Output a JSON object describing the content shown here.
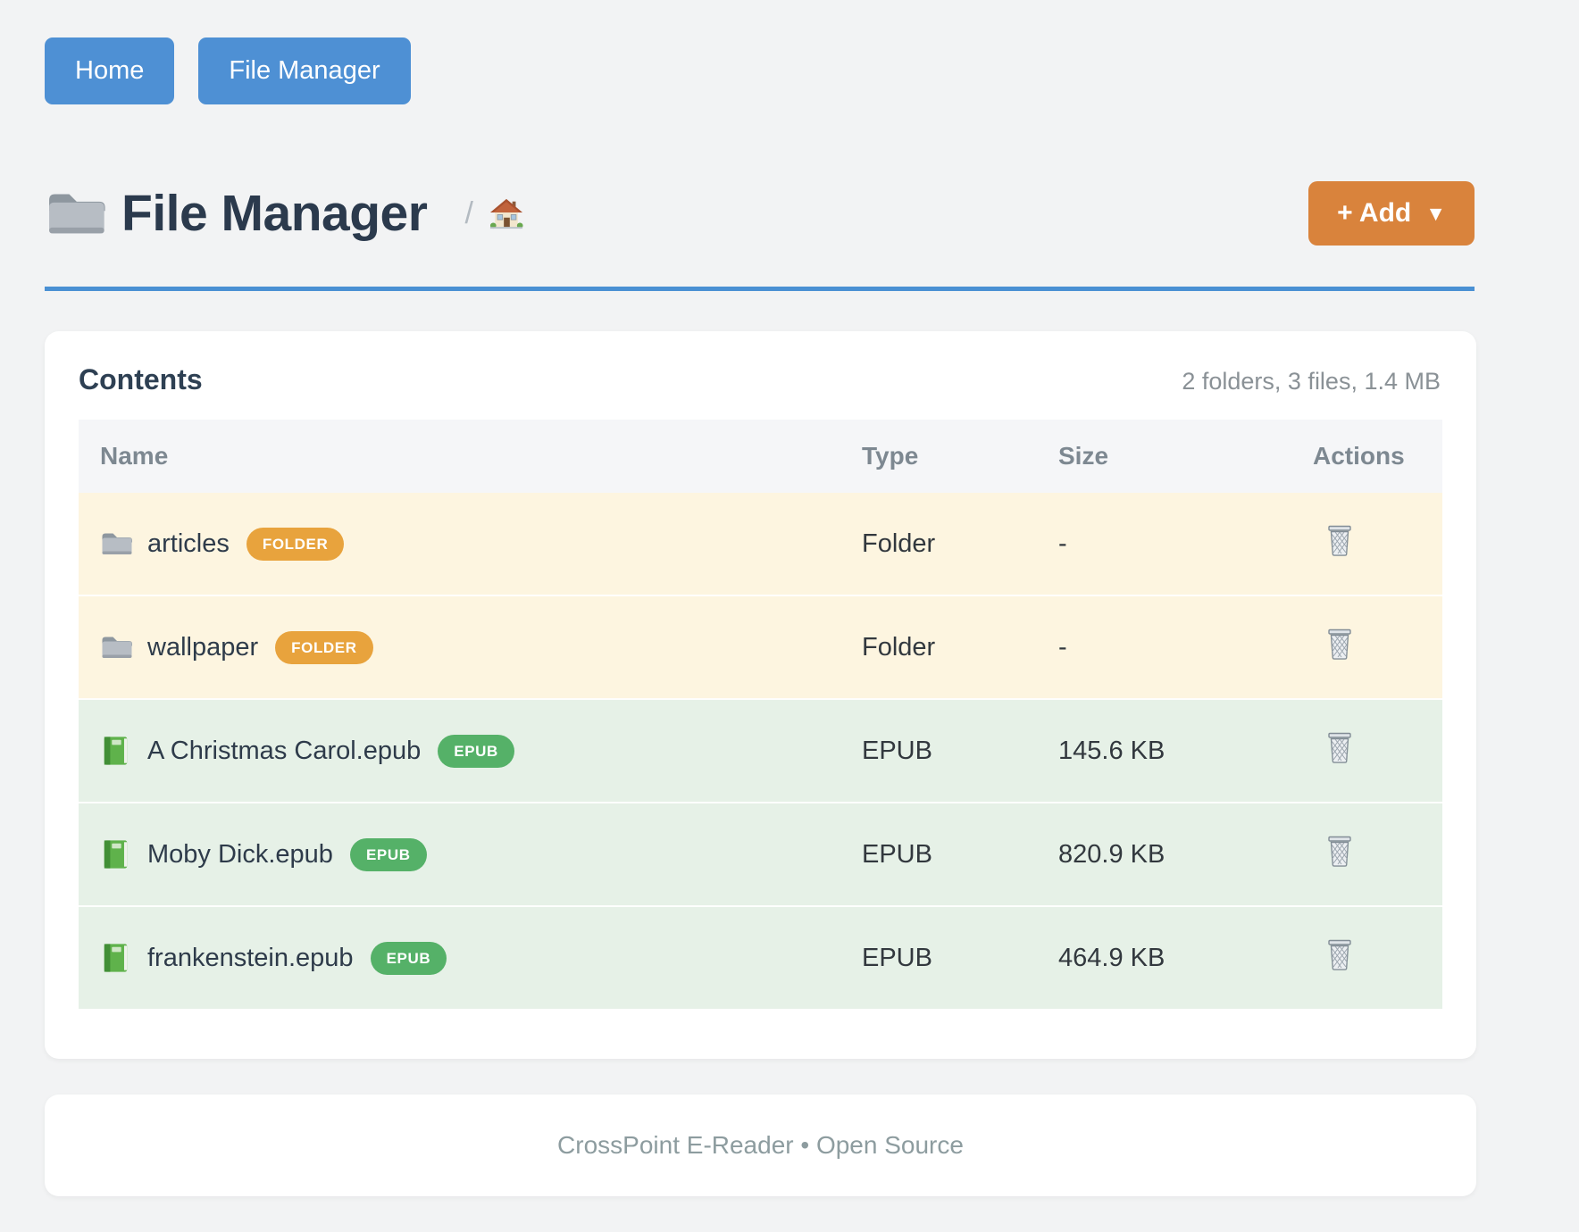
{
  "nav": {
    "home_label": "Home",
    "file_manager_label": "File Manager"
  },
  "header": {
    "title": "File Manager",
    "title_icon": "folder-icon",
    "breadcrumb_separator": "/",
    "breadcrumb_home_icon": "house-icon",
    "add_button_label": "+ Add",
    "add_button_caret": "▼"
  },
  "contents": {
    "heading": "Contents",
    "summary": "2 folders, 3 files, 1.4 MB",
    "table": {
      "columns": [
        "Name",
        "Type",
        "Size",
        "Actions"
      ],
      "rows": [
        {
          "name": "articles",
          "badge": "FOLDER",
          "type": "Folder",
          "size": "-",
          "kind": "folder",
          "icon": "folder-icon",
          "action_icon": "trash-icon"
        },
        {
          "name": "wallpaper",
          "badge": "FOLDER",
          "type": "Folder",
          "size": "-",
          "kind": "folder",
          "icon": "folder-icon",
          "action_icon": "trash-icon"
        },
        {
          "name": "A Christmas Carol.epub",
          "badge": "EPUB",
          "type": "EPUB",
          "size": "145.6 KB",
          "kind": "epub",
          "icon": "green-book-icon",
          "action_icon": "trash-icon"
        },
        {
          "name": "Moby Dick.epub",
          "badge": "EPUB",
          "type": "EPUB",
          "size": "820.9 KB",
          "kind": "epub",
          "icon": "green-book-icon",
          "action_icon": "trash-icon"
        },
        {
          "name": "frankenstein.epub",
          "badge": "EPUB",
          "type": "EPUB",
          "size": "464.9 KB",
          "kind": "epub",
          "icon": "green-book-icon",
          "action_icon": "trash-icon"
        }
      ]
    }
  },
  "footer": {
    "text": "CrossPoint E-Reader • Open Source"
  },
  "colors": {
    "page_background": "#f2f3f4",
    "nav_button_blue": "#4e90d4",
    "rule_blue": "#4a90d3",
    "add_button_orange": "#d9833c",
    "folder_badge_orange": "#e8a33d",
    "epub_badge_green": "#55b168",
    "folder_row_background": "#fdf5e0",
    "epub_row_background": "#e6f1e7",
    "title_text": "#2b3a4d"
  }
}
